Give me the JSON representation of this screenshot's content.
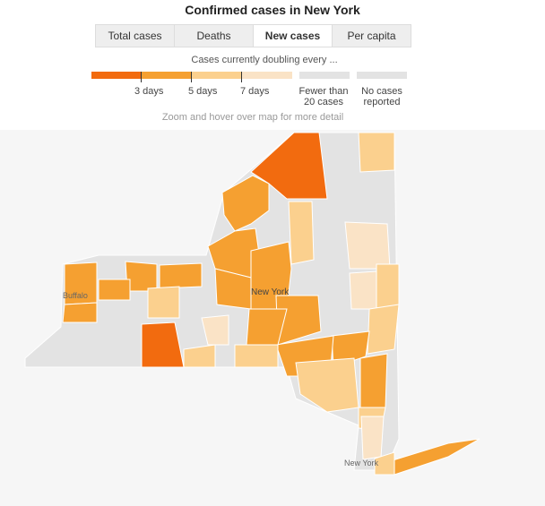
{
  "header": {
    "title": "Confirmed cases in New York"
  },
  "tabs": [
    "Total cases",
    "Deaths",
    "New cases",
    "Per capita"
  ],
  "legend": {
    "title": "Cases currently doubling every ...",
    "labels": [
      "3 days",
      "5 days",
      "7 days",
      "Fewer than 20 cases",
      "No cases reported"
    ]
  },
  "hint": "Zoom and hover over map for more detail",
  "map": {
    "labels": [
      "Buffalo",
      "New York",
      "New York"
    ]
  }
}
